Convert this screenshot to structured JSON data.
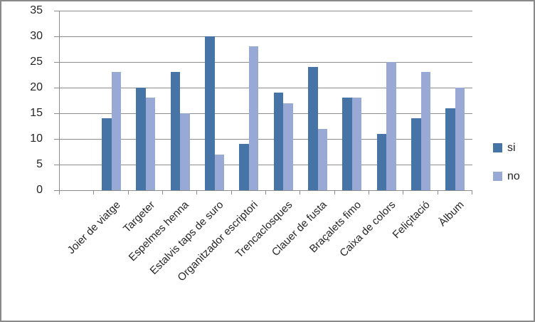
{
  "chart_data": {
    "type": "bar",
    "categories": [
      "Joier de viatge",
      "Targeter",
      "Espelmes henna",
      "Estalvis taps de suro",
      "Organitzador escriptori",
      "Trencaclosques",
      "Clauer de fusta",
      "Braçalets fimo",
      "Caixa de colors",
      "Feliçitació",
      "Àlbum"
    ],
    "series": [
      {
        "name": "si",
        "color": "#4674a6",
        "values": [
          14,
          20,
          23,
          30,
          9,
          19,
          24,
          18,
          11,
          14,
          16
        ]
      },
      {
        "name": "no",
        "color": "#99a9d6",
        "values": [
          23,
          18,
          15,
          7,
          28,
          17,
          12,
          18,
          25,
          23,
          20
        ]
      }
    ],
    "ylim": [
      0,
      35
    ],
    "ytick_step": 5,
    "grid": true,
    "legend_position": "right",
    "layout": {
      "leading_empty_slots": 1
    }
  },
  "colors": {
    "gridline": "#8c8c8c",
    "axis": "#8c8c8c",
    "text": "#262626",
    "frame_border": "#8a8a8a",
    "background": "#ffffff"
  }
}
